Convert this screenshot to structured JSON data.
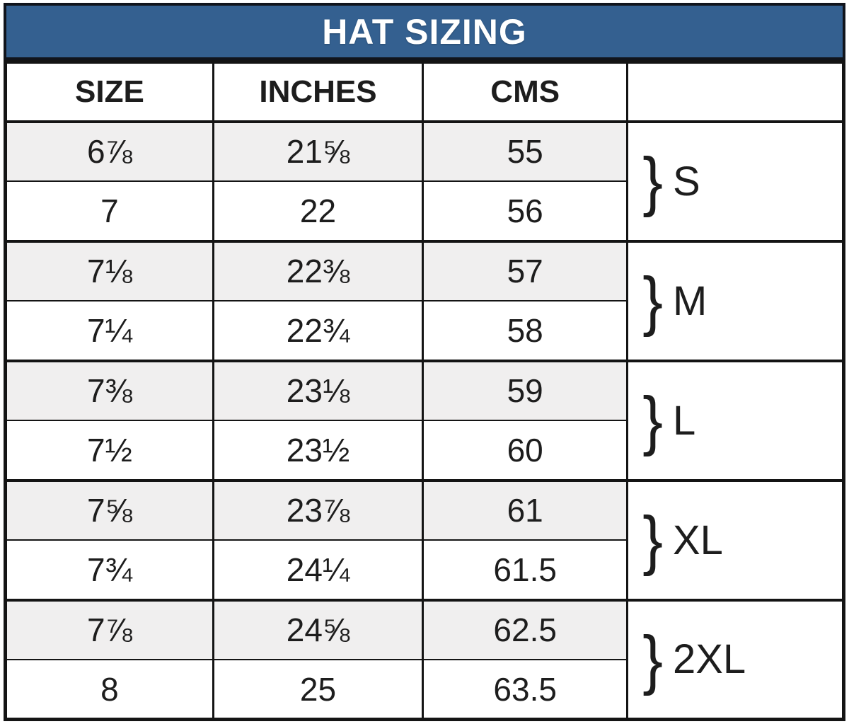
{
  "title": "HAT SIZING",
  "columns": {
    "size": "SIZE",
    "inches": "INCHES",
    "cms": "CMS",
    "group": ""
  },
  "brace": "}",
  "groups": [
    {
      "label": "S"
    },
    {
      "label": "M"
    },
    {
      "label": "L"
    },
    {
      "label": "XL"
    },
    {
      "label": "2XL"
    }
  ],
  "rows": [
    {
      "size": "6⅞",
      "inches": "21⅝",
      "cms": "55"
    },
    {
      "size": "7",
      "inches": "22",
      "cms": "56"
    },
    {
      "size": "7⅛",
      "inches": "22⅜",
      "cms": "57"
    },
    {
      "size": "7¼",
      "inches": "22¾",
      "cms": "58"
    },
    {
      "size": "7⅜",
      "inches": "23⅛",
      "cms": "59"
    },
    {
      "size": "7½",
      "inches": "23½",
      "cms": "60"
    },
    {
      "size": "7⅝",
      "inches": "23⅞",
      "cms": "61"
    },
    {
      "size": "7¾",
      "inches": "24¼",
      "cms": "61.5"
    },
    {
      "size": "7⅞",
      "inches": "24⅝",
      "cms": "62.5"
    },
    {
      "size": "8",
      "inches": "25",
      "cms": "63.5"
    }
  ],
  "colors": {
    "header_bg": "#346090",
    "header_text": "#ffffff",
    "row_alt_bg": "#f0efef",
    "border": "#141414",
    "text": "#1d1d1d"
  }
}
